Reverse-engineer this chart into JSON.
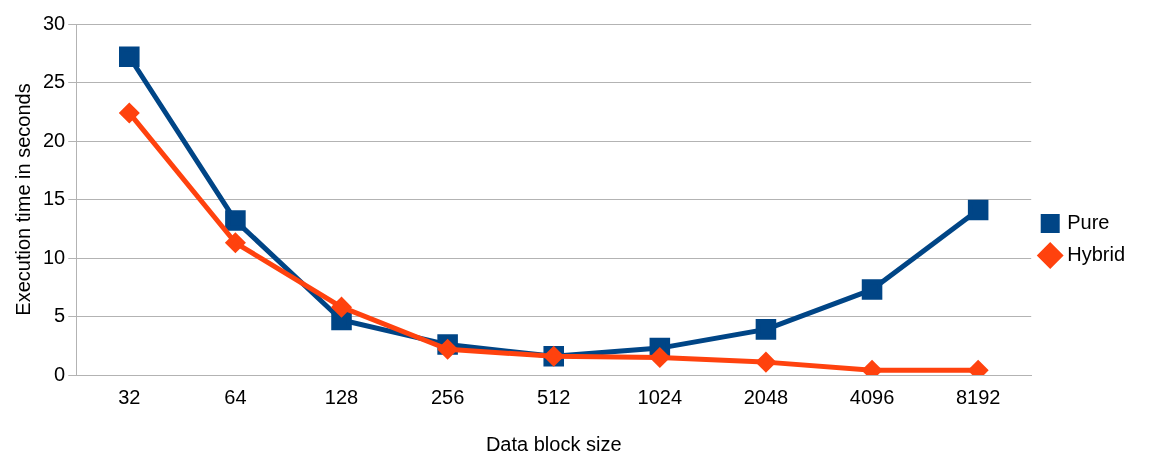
{
  "chart_data": {
    "type": "line",
    "xlabel": "Data block size",
    "ylabel": "Execution time in seconds",
    "categories": [
      "32",
      "64",
      "128",
      "256",
      "512",
      "1024",
      "2048",
      "4096",
      "8192"
    ],
    "series": [
      {
        "name": "Pure",
        "color": "#004586",
        "marker": "square",
        "values": [
          27.2,
          13.2,
          4.7,
          2.6,
          1.6,
          2.3,
          3.9,
          7.3,
          14.1
        ]
      },
      {
        "name": "Hybrid",
        "color": "#ff420e",
        "marker": "diamond",
        "values": [
          22.4,
          11.3,
          5.8,
          2.2,
          1.6,
          1.5,
          1.1,
          0.4,
          0.4
        ]
      }
    ],
    "ylim": [
      0,
      30
    ],
    "yticks": [
      0,
      5,
      10,
      15,
      20,
      25,
      30
    ],
    "grid": "y",
    "legend": "right"
  }
}
